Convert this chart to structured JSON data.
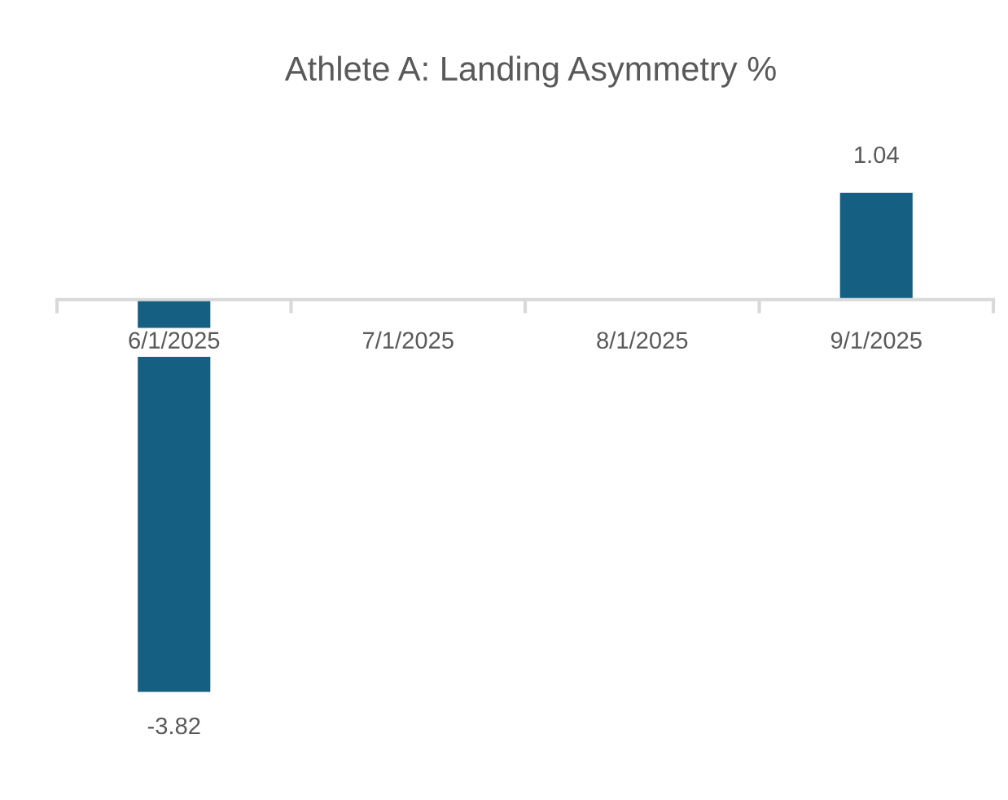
{
  "chart_data": {
    "type": "bar",
    "title": "Athlete A: Landing Asymmetry %",
    "categories": [
      "6/1/2025",
      "7/1/2025",
      "8/1/2025",
      "9/1/2025"
    ],
    "values": [
      -3.82,
      null,
      null,
      1.04
    ],
    "color": "#156082",
    "tick_labels": "x",
    "data_labels": true
  }
}
